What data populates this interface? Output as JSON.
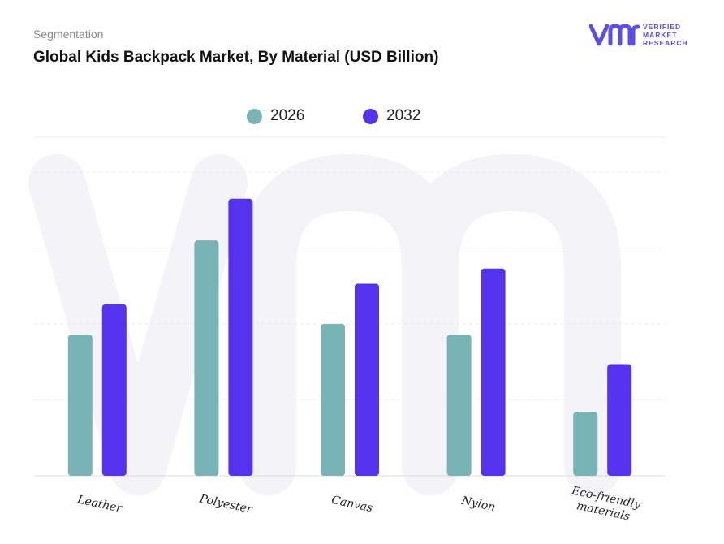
{
  "header": {
    "segment_label": "Segmentation",
    "title": "Global Kids Backpack Market, By Material (USD Billion)"
  },
  "logo": {
    "line1": "VERIFIED",
    "line2": "MARKET",
    "line3": "RESEARCH",
    "color": "#5b4de8"
  },
  "chart_data": {
    "type": "bar",
    "categories": [
      "Leather",
      "Polyester",
      "Canvas",
      "Nylon",
      "Eco-friendly materials"
    ],
    "series": [
      {
        "name": "2026",
        "color": "#78b4b6",
        "values": [
          1.86,
          3.1,
          2.0,
          1.86,
          0.84
        ]
      },
      {
        "name": "2032",
        "color": "#5533ee",
        "values": [
          2.26,
          3.65,
          2.53,
          2.73,
          1.47
        ]
      }
    ],
    "ylim": [
      0,
      4.0
    ],
    "grid": true,
    "legend": "top-center"
  }
}
